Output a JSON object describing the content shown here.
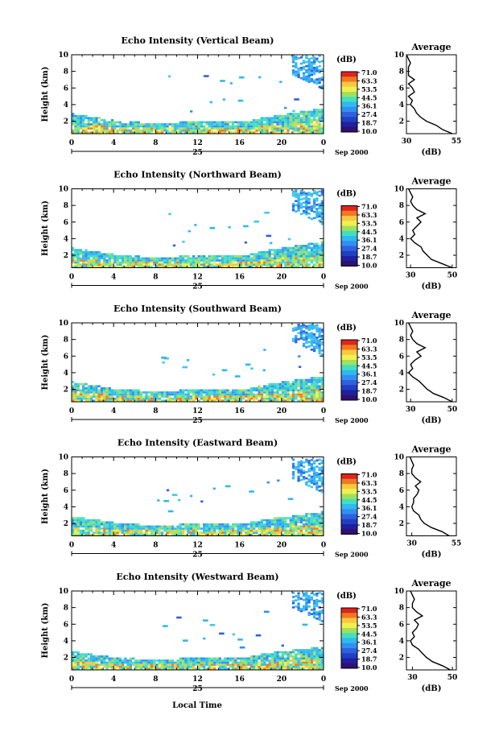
{
  "figure": {
    "xlabel_bottom": "Local Time",
    "date_label": "Sep 2000",
    "day_label": "25"
  },
  "colorbar": {
    "unit": "(dB)",
    "ticks": [
      "71.0",
      "63.3",
      "53.5",
      "44.5",
      "36.1",
      "27.4",
      "18.7",
      "10.0"
    ],
    "colors": [
      "#e0241c",
      "#f07820",
      "#f8c840",
      "#f0f050",
      "#a0e060",
      "#40e0c0",
      "#30b8f0",
      "#3090f0",
      "#3060e0",
      "#2040c0",
      "#2020a0",
      "#301070"
    ]
  },
  "chart_data": [
    {
      "type": "heatmap",
      "title": "Echo Intensity (Vertical Beam)",
      "ylabel": "Height (km)",
      "xlim": [
        0,
        24
      ],
      "ylim": [
        0.5,
        10
      ],
      "xticks": [
        "0",
        "4",
        "8",
        "12",
        "16",
        "20",
        "0"
      ],
      "yticks": [
        "2",
        "4",
        "6",
        "8",
        "10"
      ],
      "boundary_layer_top_km": [
        [
          0,
          2.8
        ],
        [
          4,
          2.0
        ],
        [
          8,
          1.6
        ],
        [
          12,
          1.9
        ],
        [
          16,
          1.8
        ],
        [
          19,
          2.5
        ],
        [
          24,
          3.5
        ]
      ],
      "upper_echo": {
        "x_start": 21,
        "x_end": 24,
        "bottom_km": 6.0,
        "top_km": 9.8
      },
      "profile": {
        "title": "Average",
        "xlabel": "(dB)",
        "xlim": [
          30,
          55
        ],
        "xticks": [
          "30",
          "55"
        ],
        "yticks": [
          "2",
          "4",
          "6",
          "8",
          "10"
        ],
        "heights": [
          0.5,
          1.0,
          1.5,
          2.0,
          2.5,
          3.0,
          3.5,
          4.0,
          4.5,
          5.0,
          5.5,
          6.0,
          6.5,
          7.0,
          7.5,
          8.0,
          8.5,
          9.0,
          9.5,
          10.0
        ],
        "values": [
          53,
          48,
          45,
          40,
          37,
          35,
          34,
          32,
          33,
          31,
          34,
          33,
          31,
          34,
          31,
          31,
          31,
          32,
          31,
          30
        ]
      }
    },
    {
      "type": "heatmap",
      "title": "Echo Intensity (Northward Beam)",
      "ylabel": "Height (km)",
      "xlim": [
        0,
        24
      ],
      "ylim": [
        0.5,
        10
      ],
      "xticks": [
        "0",
        "4",
        "8",
        "12",
        "16",
        "20",
        "0"
      ],
      "yticks": [
        "2",
        "4",
        "6",
        "8",
        "10"
      ],
      "boundary_layer_top_km": [
        [
          0,
          2.8
        ],
        [
          4,
          2.0
        ],
        [
          8,
          1.6
        ],
        [
          12,
          1.9
        ],
        [
          16,
          1.8
        ],
        [
          19,
          2.6
        ],
        [
          24,
          3.6
        ]
      ],
      "upper_echo": {
        "x_start": 21,
        "x_end": 24,
        "bottom_km": 5.8,
        "top_km": 9.7
      },
      "profile": {
        "title": "Average",
        "xlabel": "(dB)",
        "xlim": [
          28,
          52
        ],
        "xticks": [
          "30",
          "50"
        ],
        "yticks": [
          "2",
          "4",
          "6",
          "8",
          "10"
        ],
        "heights": [
          0.5,
          1.0,
          1.5,
          2.0,
          2.5,
          3.0,
          3.5,
          4.0,
          4.5,
          5.0,
          5.5,
          6.0,
          6.5,
          7.0,
          7.5,
          8.0,
          8.5,
          9.0,
          9.5,
          10.0
        ],
        "values": [
          50,
          45,
          40,
          38,
          36,
          35,
          32,
          30,
          32,
          31,
          33,
          35,
          33,
          37,
          33,
          31,
          30,
          31,
          30,
          29
        ]
      }
    },
    {
      "type": "heatmap",
      "title": "Echo Intensity (Southward Beam)",
      "ylabel": "Height (km)",
      "xlim": [
        0,
        24
      ],
      "ylim": [
        0.5,
        10
      ],
      "xticks": [
        "0",
        "4",
        "8",
        "12",
        "16",
        "20",
        "0"
      ],
      "yticks": [
        "2",
        "4",
        "6",
        "8",
        "10"
      ],
      "boundary_layer_top_km": [
        [
          0,
          2.8
        ],
        [
          4,
          2.0
        ],
        [
          8,
          1.6
        ],
        [
          12,
          1.9
        ],
        [
          16,
          1.8
        ],
        [
          19,
          2.6
        ],
        [
          24,
          3.5
        ]
      ],
      "upper_echo": {
        "x_start": 21,
        "x_end": 24,
        "bottom_km": 6.2,
        "top_km": 9.7
      },
      "profile": {
        "title": "Average",
        "xlabel": "(dB)",
        "xlim": [
          28,
          52
        ],
        "xticks": [
          "30",
          "50"
        ],
        "yticks": [
          "2",
          "4",
          "6",
          "8",
          "10"
        ],
        "heights": [
          0.5,
          1.0,
          1.5,
          2.0,
          2.5,
          3.0,
          3.5,
          4.0,
          4.5,
          5.0,
          5.5,
          6.0,
          6.5,
          7.0,
          7.5,
          8.0,
          8.5,
          9.0,
          9.5,
          10.0
        ],
        "values": [
          50,
          46,
          41,
          38,
          36,
          34,
          31,
          29,
          31,
          30,
          32,
          35,
          33,
          37,
          33,
          31,
          30,
          31,
          30,
          29
        ]
      }
    },
    {
      "type": "heatmap",
      "title": "Echo Intensity (Eastward Beam)",
      "ylabel": "Height (km)",
      "xlim": [
        0,
        24
      ],
      "ylim": [
        0.5,
        10
      ],
      "xticks": [
        "0",
        "4",
        "8",
        "12",
        "16",
        "20",
        "0"
      ],
      "yticks": [
        "2",
        "4",
        "6",
        "8",
        "10"
      ],
      "boundary_layer_top_km": [
        [
          0,
          2.7
        ],
        [
          4,
          2.0
        ],
        [
          8,
          1.6
        ],
        [
          12,
          1.9
        ],
        [
          16,
          1.8
        ],
        [
          19,
          2.5
        ],
        [
          24,
          3.3
        ]
      ],
      "upper_echo": {
        "x_start": 21,
        "x_end": 24,
        "bottom_km": 5.8,
        "top_km": 9.6
      },
      "profile": {
        "title": "Average",
        "xlabel": "(dB)",
        "xlim": [
          27,
          55
        ],
        "xticks": [
          "30",
          "55"
        ],
        "yticks": [
          "2",
          "4",
          "6",
          "8",
          "10"
        ],
        "heights": [
          0.5,
          1.0,
          1.5,
          2.0,
          2.5,
          3.0,
          3.5,
          4.0,
          4.5,
          5.0,
          5.5,
          6.0,
          6.5,
          7.0,
          7.5,
          8.0,
          8.5,
          9.0,
          9.5,
          10.0
        ],
        "values": [
          51,
          47,
          41,
          37,
          35,
          34,
          31,
          30,
          31,
          31,
          33,
          34,
          32,
          35,
          32,
          30,
          30,
          31,
          30,
          29
        ]
      }
    },
    {
      "type": "heatmap",
      "title": "Echo Intensity (Westward Beam)",
      "ylabel": "Height (km)",
      "xlim": [
        0,
        24
      ],
      "ylim": [
        0.5,
        10
      ],
      "xticks": [
        "0",
        "4",
        "8",
        "12",
        "16",
        "20",
        "0"
      ],
      "yticks": [
        "2",
        "4",
        "6",
        "8",
        "10"
      ],
      "boundary_layer_top_km": [
        [
          0,
          2.6
        ],
        [
          4,
          1.9
        ],
        [
          8,
          1.6
        ],
        [
          12,
          1.9
        ],
        [
          16,
          1.8
        ],
        [
          19,
          2.5
        ],
        [
          24,
          3.2
        ]
      ],
      "upper_echo": {
        "x_start": 21,
        "x_end": 24,
        "bottom_km": 6.4,
        "top_km": 9.7
      },
      "profile": {
        "title": "Average",
        "xlabel": "(dB)",
        "xlim": [
          27,
          52
        ],
        "xticks": [
          "30",
          "50"
        ],
        "yticks": [
          "2",
          "4",
          "6",
          "8",
          "10"
        ],
        "heights": [
          0.5,
          1.0,
          1.5,
          2.0,
          2.5,
          3.0,
          3.5,
          4.0,
          4.5,
          5.0,
          5.5,
          6.0,
          6.5,
          7.0,
          7.5,
          8.0,
          8.5,
          9.0,
          9.5,
          10.0
        ],
        "values": [
          49,
          45,
          40,
          37,
          35,
          33,
          30,
          29,
          31,
          30,
          32,
          33,
          31,
          35,
          32,
          30,
          30,
          31,
          30,
          29
        ]
      }
    }
  ]
}
